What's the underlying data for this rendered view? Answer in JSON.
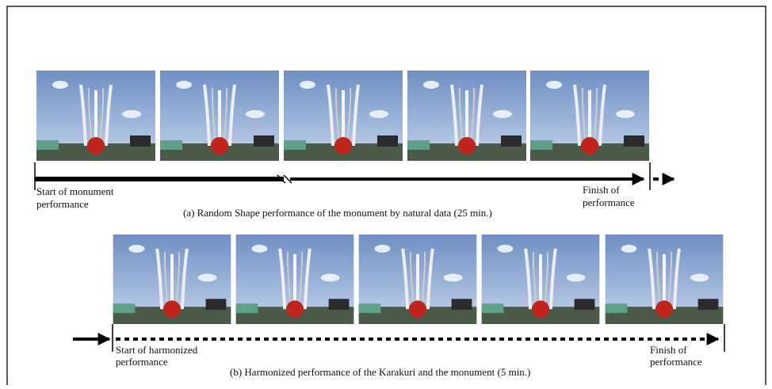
{
  "top_row": {
    "start_label": [
      "Start of monument",
      "performance"
    ],
    "finish_label": [
      "Finish of",
      "performance"
    ],
    "caption": "(a) Random Shape performance of the monument by natural data (25 min.)"
  },
  "bottom_row": {
    "start_label": [
      "Start of harmonized",
      "performance"
    ],
    "finish_label": [
      "Finish of",
      "performance"
    ],
    "caption": "(b) Harmonized performance of the Karakuri  and the monument (5 min.)"
  }
}
